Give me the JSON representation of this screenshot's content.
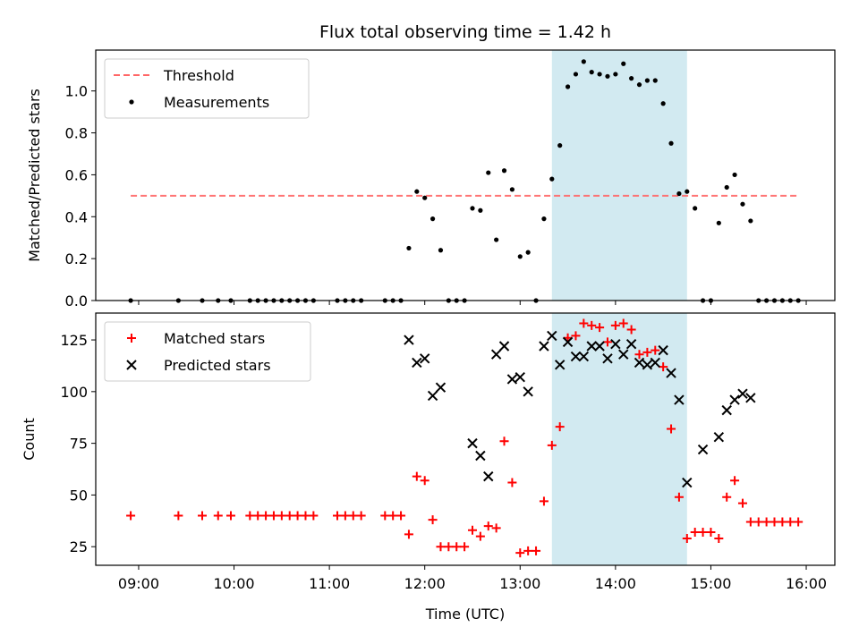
{
  "chart_data": [
    {
      "type": "scatter",
      "title": "Flux total observing time = 1.42 h",
      "xlabel": "",
      "ylabel": "Matched/Predicted stars",
      "ylim": [
        0,
        1.2
      ],
      "yticks": [
        "0.0",
        "0.2",
        "0.4",
        "0.6",
        "0.8",
        "1.0"
      ],
      "legend_position": "top-left",
      "highlight_span": {
        "start": "13:20",
        "end": "14:45",
        "color": "#add8e6"
      },
      "series": [
        {
          "name": "Threshold",
          "kind": "dashed-line",
          "color": "#ff6666",
          "x": [
            "08:55",
            "15:55"
          ],
          "y": [
            0.5,
            0.5
          ]
        },
        {
          "name": "Measurements",
          "kind": "dot",
          "color": "#000000",
          "x": [
            "08:55",
            "09:25",
            "09:40",
            "09:50",
            "09:58",
            "10:10",
            "10:15",
            "10:20",
            "10:25",
            "10:30",
            "10:35",
            "10:40",
            "10:45",
            "10:50",
            "11:05",
            "11:10",
            "11:15",
            "11:20",
            "11:35",
            "11:40",
            "11:45",
            "11:50",
            "11:55",
            "12:00",
            "12:05",
            "12:10",
            "12:15",
            "12:20",
            "12:25",
            "12:30",
            "12:35",
            "12:40",
            "12:45",
            "12:50",
            "12:55",
            "13:00",
            "13:05",
            "13:10",
            "13:15",
            "13:20",
            "13:25",
            "13:30",
            "13:35",
            "13:40",
            "13:45",
            "13:50",
            "13:55",
            "14:00",
            "14:05",
            "14:10",
            "14:15",
            "14:20",
            "14:25",
            "14:30",
            "14:35",
            "14:40",
            "14:45",
            "14:50",
            "14:55",
            "15:00",
            "15:05",
            "15:10",
            "15:15",
            "15:20",
            "15:25",
            "15:30",
            "15:35",
            "15:40",
            "15:45",
            "15:50",
            "15:55"
          ],
          "y": [
            0,
            0,
            0,
            0,
            0,
            0,
            0,
            0,
            0,
            0,
            0,
            0,
            0,
            0,
            0,
            0,
            0,
            0,
            0,
            0,
            0,
            0.25,
            0.52,
            0.49,
            0.39,
            0.24,
            0,
            0,
            0,
            0.44,
            0.43,
            0.61,
            0.29,
            0.62,
            0.53,
            0.21,
            0.23,
            0,
            0.39,
            0.58,
            0.74,
            1.02,
            1.08,
            1.14,
            1.09,
            1.08,
            1.07,
            1.08,
            1.13,
            1.06,
            1.03,
            1.05,
            1.05,
            0.94,
            0.75,
            0.51,
            0.52,
            0.44,
            0,
            0,
            0.37,
            0.54,
            0.6,
            0.46,
            0.38,
            0,
            0,
            0,
            0,
            0,
            0
          ]
        }
      ]
    },
    {
      "type": "scatter",
      "title": "",
      "xlabel": "Time (UTC)",
      "ylabel": "Count",
      "ylim": [
        16,
        138
      ],
      "yticks": [
        "25",
        "50",
        "75",
        "100",
        "125"
      ],
      "xticks": [
        "09:00",
        "10:00",
        "11:00",
        "12:00",
        "13:00",
        "14:00",
        "15:00",
        "16:00"
      ],
      "legend_position": "top-left",
      "highlight_span": {
        "start": "13:20",
        "end": "14:45",
        "color": "#add8e6"
      },
      "series": [
        {
          "name": "Matched stars",
          "kind": "plus",
          "color": "#ff0000",
          "x": [
            "08:55",
            "09:25",
            "09:40",
            "09:50",
            "09:58",
            "10:10",
            "10:15",
            "10:20",
            "10:25",
            "10:30",
            "10:35",
            "10:40",
            "10:45",
            "10:50",
            "11:05",
            "11:10",
            "11:15",
            "11:20",
            "11:35",
            "11:40",
            "11:45",
            "11:50",
            "11:55",
            "12:00",
            "12:05",
            "12:10",
            "12:15",
            "12:20",
            "12:25",
            "12:30",
            "12:35",
            "12:40",
            "12:45",
            "12:50",
            "12:55",
            "13:00",
            "13:05",
            "13:10",
            "13:15",
            "13:20",
            "13:25",
            "13:30",
            "13:35",
            "13:40",
            "13:45",
            "13:50",
            "13:55",
            "14:00",
            "14:05",
            "14:10",
            "14:15",
            "14:20",
            "14:25",
            "14:30",
            "14:35",
            "14:40",
            "14:45",
            "14:50",
            "14:55",
            "15:00",
            "15:05",
            "15:10",
            "15:15",
            "15:20",
            "15:25",
            "15:30",
            "15:35",
            "15:40",
            "15:45",
            "15:50",
            "15:55"
          ],
          "y": [
            40,
            40,
            40,
            40,
            40,
            40,
            40,
            40,
            40,
            40,
            40,
            40,
            40,
            40,
            40,
            40,
            40,
            40,
            40,
            40,
            40,
            31,
            59,
            57,
            38,
            25,
            25,
            25,
            25,
            33,
            30,
            35,
            34,
            76,
            56,
            22,
            23,
            23,
            47,
            74,
            83,
            126,
            127,
            133,
            132,
            131,
            124,
            132,
            133,
            130,
            118,
            119,
            120,
            112,
            82,
            49,
            29,
            32,
            32,
            32,
            29,
            49,
            57,
            46,
            37,
            37,
            37,
            37,
            37,
            37,
            37
          ]
        },
        {
          "name": "Predicted stars",
          "kind": "cross",
          "color": "#000000",
          "x": [
            "11:50",
            "11:55",
            "12:00",
            "12:05",
            "12:10",
            "12:30",
            "12:35",
            "12:40",
            "12:45",
            "12:50",
            "12:55",
            "13:00",
            "13:05",
            "13:15",
            "13:20",
            "13:25",
            "13:30",
            "13:35",
            "13:40",
            "13:45",
            "13:50",
            "13:55",
            "14:00",
            "14:05",
            "14:10",
            "14:15",
            "14:20",
            "14:25",
            "14:30",
            "14:35",
            "14:40",
            "14:45",
            "14:55",
            "15:05",
            "15:10",
            "15:15",
            "15:20",
            "15:25"
          ],
          "y": [
            125,
            114,
            116,
            98,
            102,
            75,
            69,
            59,
            118,
            122,
            106,
            107,
            100,
            122,
            127,
            113,
            124,
            117,
            117,
            122,
            122,
            116,
            123,
            118,
            123,
            114,
            113,
            114,
            120,
            109,
            96,
            56,
            72,
            78,
            91,
            96,
            99,
            97
          ]
        }
      ]
    }
  ]
}
